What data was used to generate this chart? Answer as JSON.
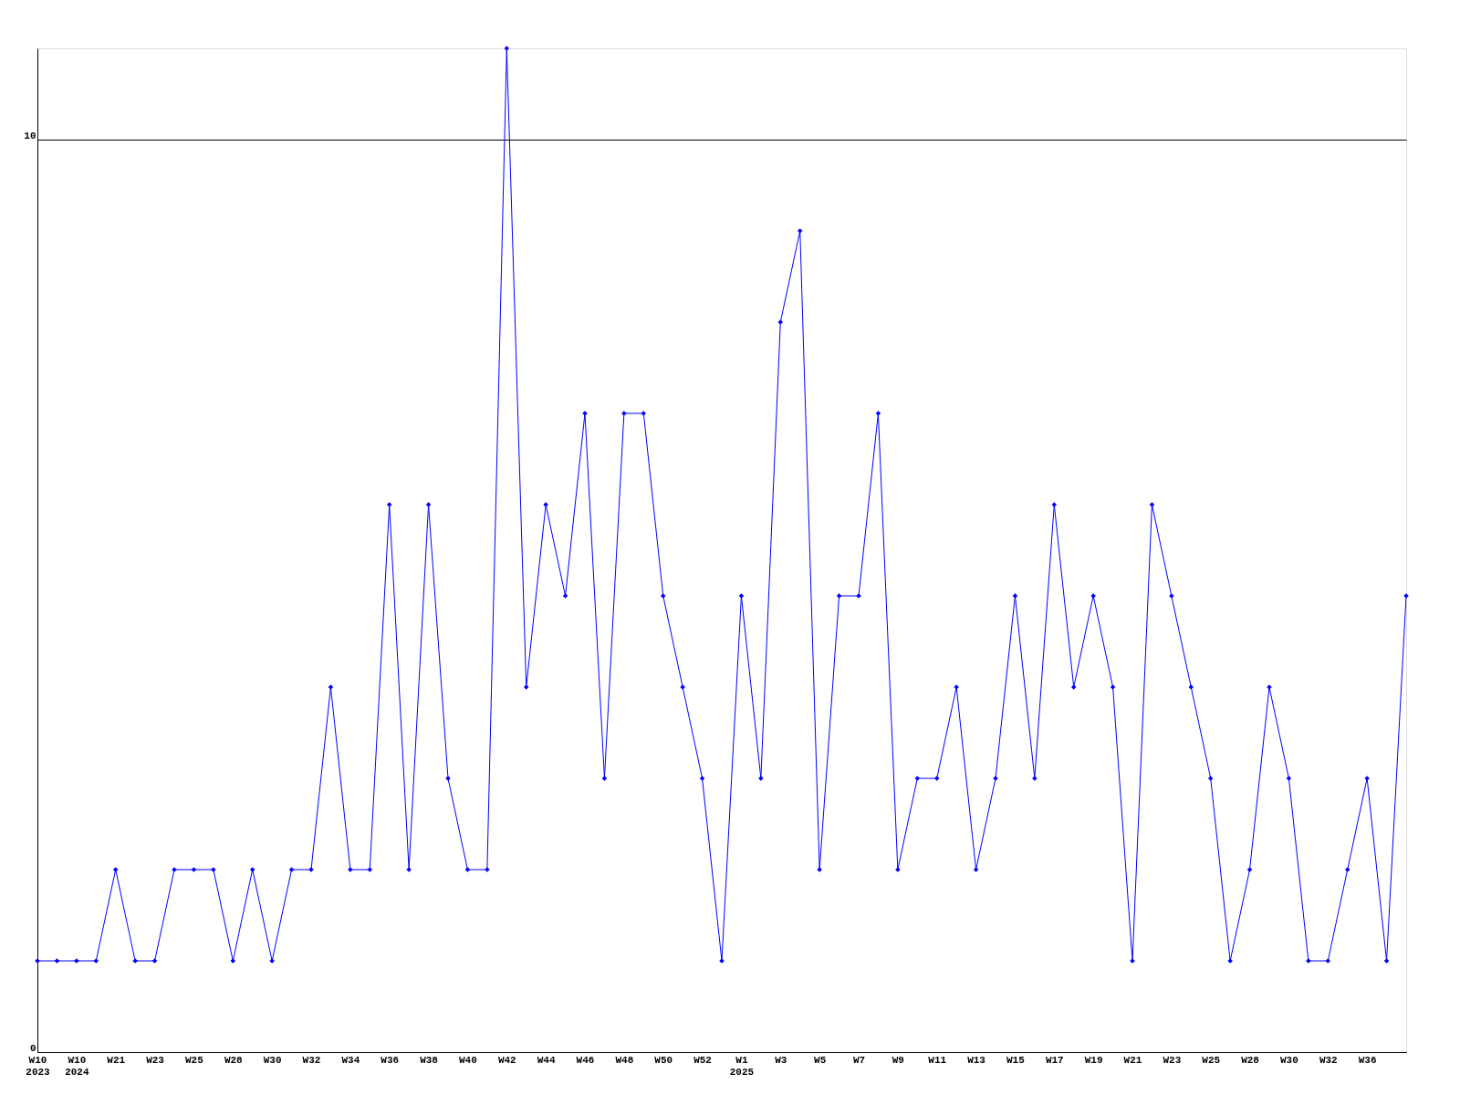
{
  "chart_data": {
    "type": "line",
    "categories": [
      "W10\n2023",
      null,
      "W10\n2024",
      null,
      "W21",
      null,
      "W23",
      null,
      "W25",
      null,
      "W28",
      null,
      "W30",
      null,
      "W32",
      null,
      "W34",
      null,
      "W36",
      null,
      "W38",
      null,
      "W40",
      null,
      "W42",
      null,
      "W44",
      null,
      "W46",
      null,
      "W48",
      null,
      "W50",
      null,
      "W52",
      null,
      "W1\n2025",
      null,
      "W3",
      null,
      "W5",
      null,
      "W7",
      null,
      "W9",
      null,
      "W11",
      null,
      "W13",
      null,
      "W15",
      null,
      "W17",
      null,
      "W19",
      null,
      "W21",
      null,
      "W23",
      null,
      "W25",
      null,
      "W28",
      null,
      "W30",
      null,
      "W32",
      null,
      "W36",
      null,
      null
    ],
    "series": [
      {
        "color": "#0000ff",
        "values": [
          1,
          1,
          1,
          1,
          2,
          1,
          1,
          2,
          2,
          2,
          1,
          2,
          1,
          2,
          2,
          4,
          2,
          2,
          6,
          2,
          6,
          3,
          2,
          2,
          11,
          4,
          6,
          5,
          7,
          3,
          7,
          7,
          5,
          4,
          3,
          1,
          5,
          3,
          8,
          9,
          2,
          5,
          5,
          7,
          2,
          3,
          3,
          4,
          2,
          3,
          5,
          3,
          6,
          4,
          5,
          4,
          1,
          6,
          5,
          4,
          3,
          1,
          2,
          4,
          3,
          1,
          1,
          2,
          3,
          1,
          5
        ]
      }
    ],
    "ylim": [
      0,
      11
    ],
    "yticks": [
      0,
      10
    ],
    "grid": "y",
    "marker": "diamond",
    "line_style": "solid",
    "legend": false
  }
}
